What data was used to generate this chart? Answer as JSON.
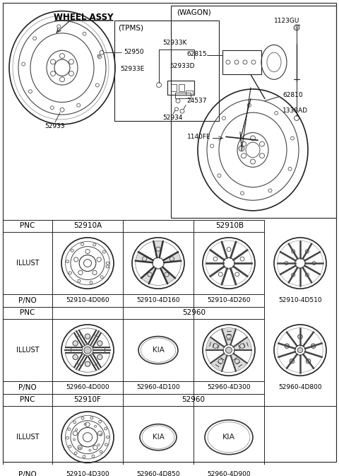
{
  "bg_color": "#ffffff",
  "table": {
    "g1_pnc": [
      "52910A",
      "52910B"
    ],
    "g1_pno": [
      "52910-4D060",
      "52910-4D160",
      "52910-4D260",
      "52910-4D510"
    ],
    "g2_pnc": "52960",
    "g2_pno": [
      "52960-4D000",
      "52960-4D100",
      "52960-4D300",
      "52960-4D800"
    ],
    "g3_pnc1": "52910F",
    "g3_pnc2": "52960",
    "g3_pno": [
      "52910-4D300",
      "52960-4D850",
      "52960-4D900"
    ]
  }
}
